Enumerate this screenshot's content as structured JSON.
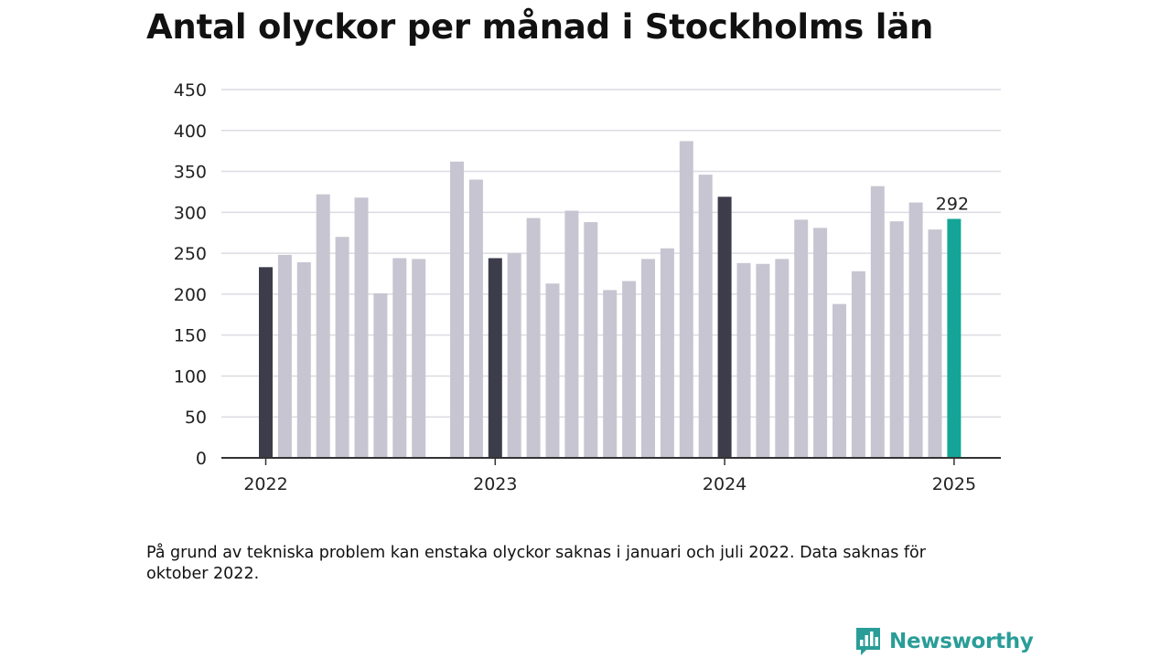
{
  "title": "Antal olyckor per månad i Stockholms län",
  "footnote": "På grund av tekniska problem kan enstaka olyckor saknas i januari och juli 2022. Data saknas för oktober 2022.",
  "brand": {
    "name": "Newsworthy",
    "icon": "newsworthy-logo-icon",
    "color": "#2a9d98"
  },
  "chart_data": {
    "type": "bar",
    "title": "Antal olyckor per månad i Stockholms län",
    "xlabel": "",
    "ylabel": "",
    "ylim": [
      0,
      450
    ],
    "yticks": [
      0,
      50,
      100,
      150,
      200,
      250,
      300,
      350,
      400,
      450
    ],
    "xticks": [
      "2022",
      "2023",
      "2024",
      "2025"
    ],
    "grid": true,
    "categories": [
      "2022-01",
      "2022-02",
      "2022-03",
      "2022-04",
      "2022-05",
      "2022-06",
      "2022-07",
      "2022-08",
      "2022-09",
      "2022-10",
      "2022-11",
      "2022-12",
      "2023-01",
      "2023-02",
      "2023-03",
      "2023-04",
      "2023-05",
      "2023-06",
      "2023-07",
      "2023-08",
      "2023-09",
      "2023-10",
      "2023-11",
      "2023-12",
      "2024-01",
      "2024-02",
      "2024-03",
      "2024-04",
      "2024-05",
      "2024-06",
      "2024-07",
      "2024-08",
      "2024-09",
      "2024-10",
      "2024-11",
      "2024-12",
      "2025-01"
    ],
    "values": [
      233,
      248,
      239,
      322,
      270,
      318,
      201,
      244,
      243,
      null,
      362,
      340,
      244,
      250,
      293,
      213,
      302,
      288,
      205,
      216,
      243,
      256,
      387,
      346,
      319,
      238,
      237,
      243,
      291,
      281,
      188,
      228,
      332,
      289,
      312,
      279,
      292
    ],
    "colors": {
      "january": "#3d3c4a",
      "default": "#c7c5d1",
      "latest": "#14a598"
    },
    "value_labels": [
      {
        "category": "2025-01",
        "text": "292"
      }
    ]
  }
}
